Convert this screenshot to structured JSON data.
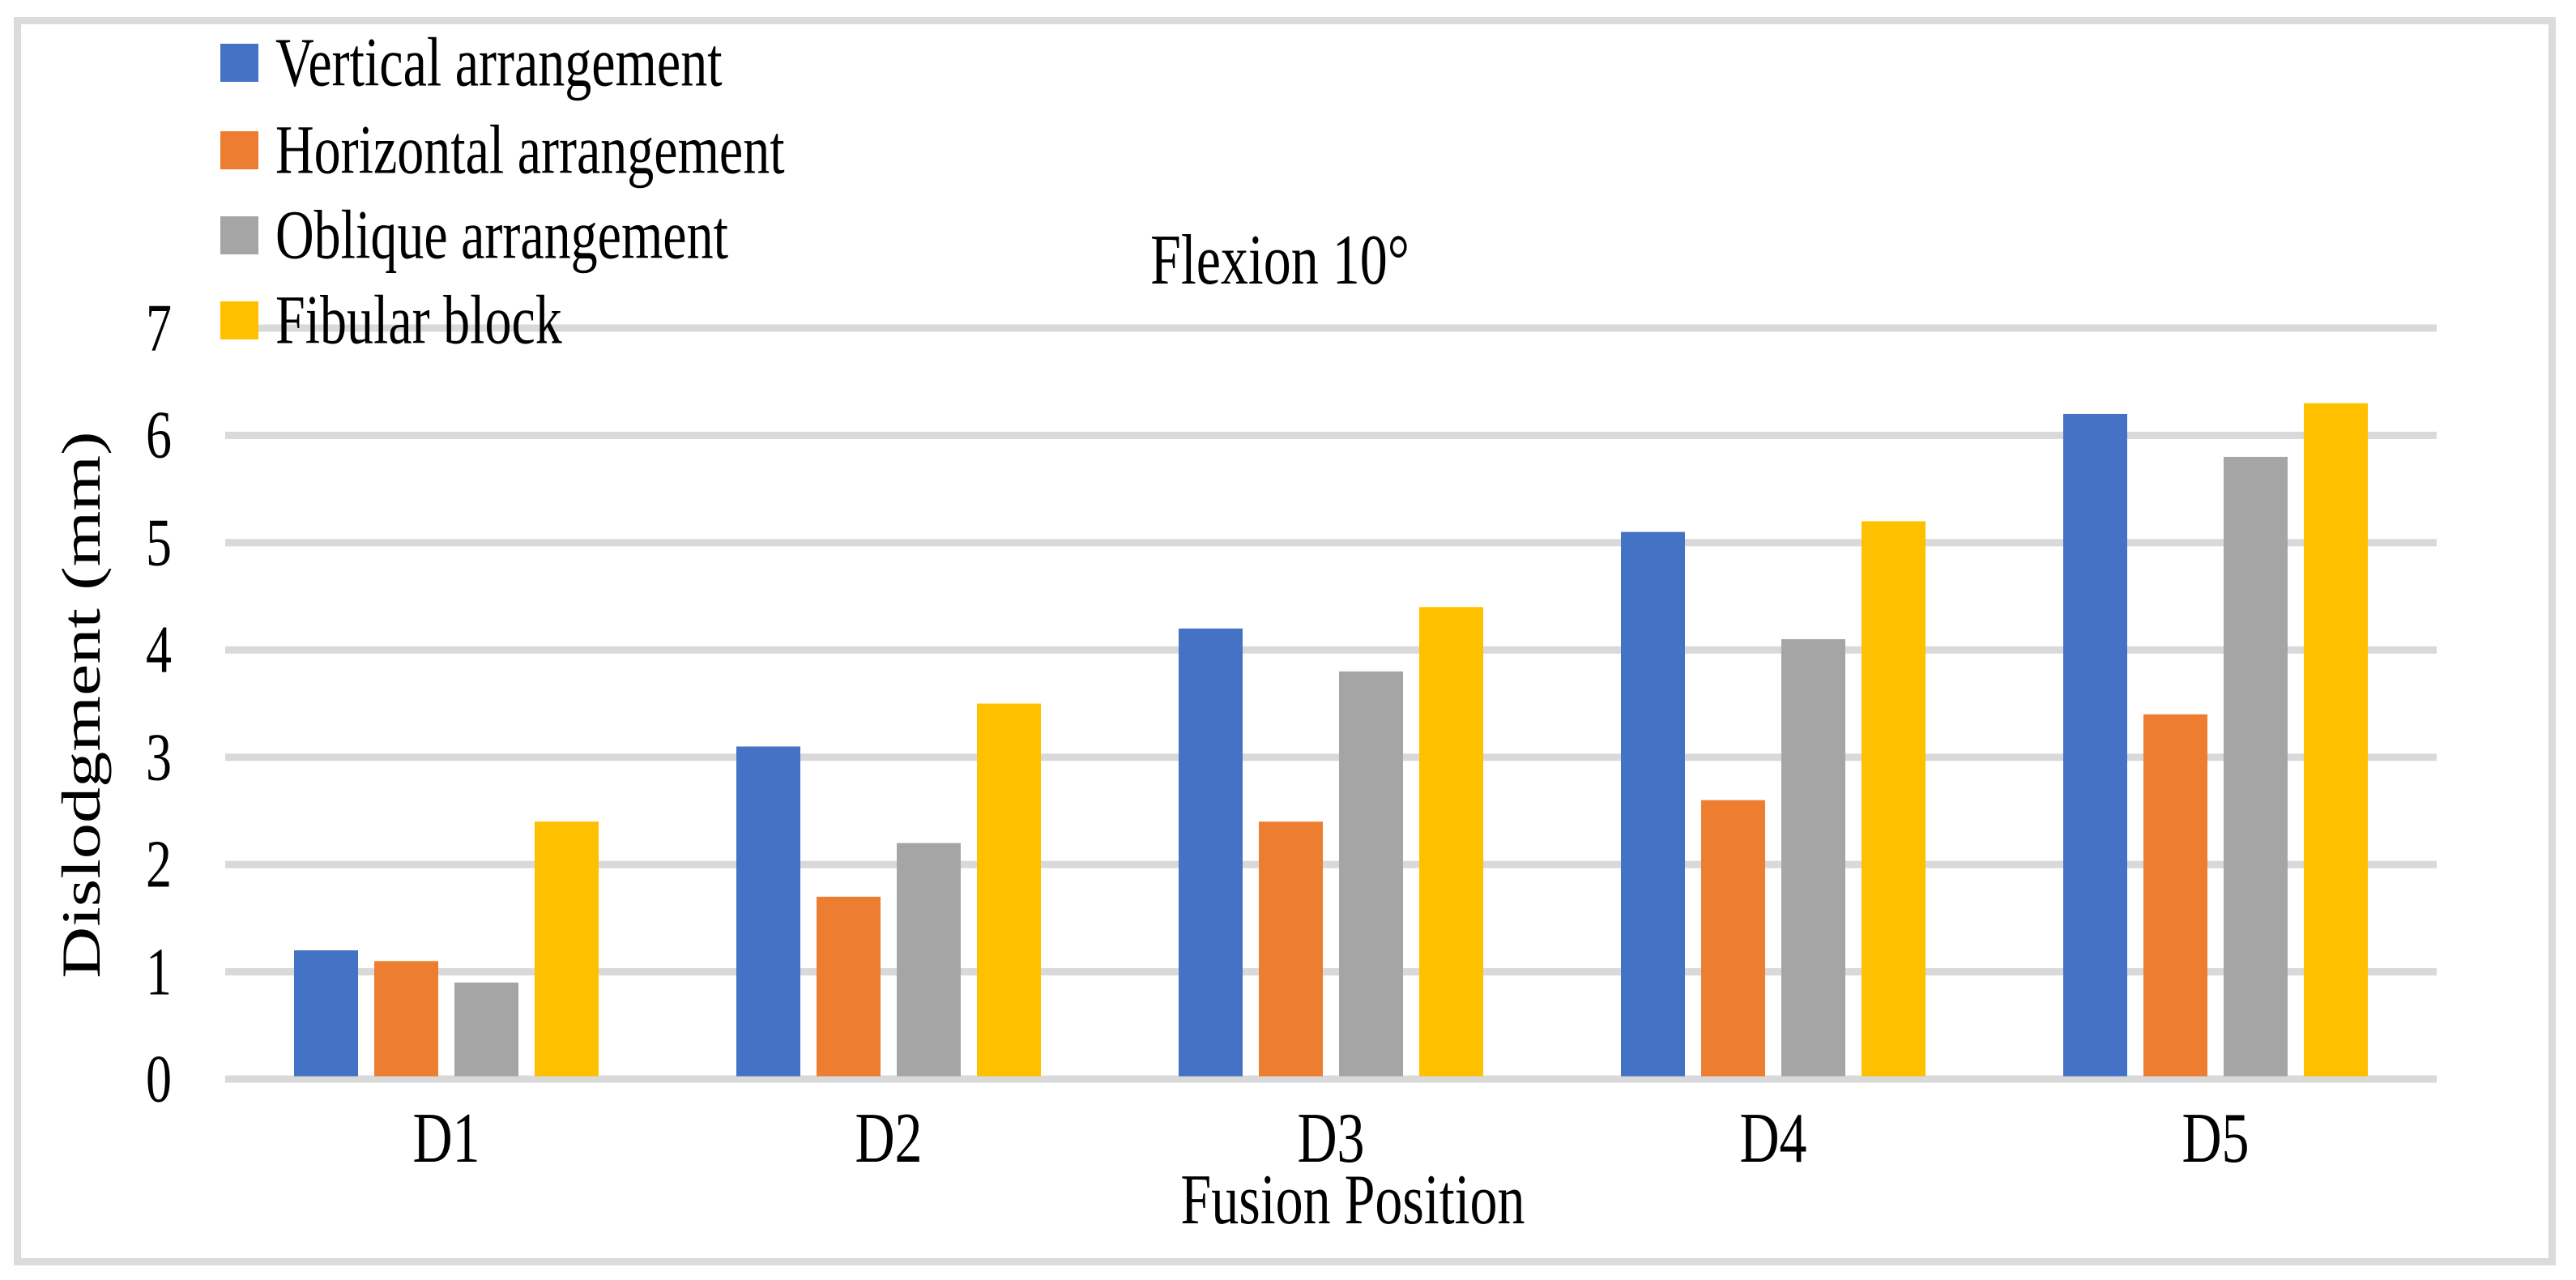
{
  "chart_data": {
    "type": "bar",
    "title": "Flexion 10°",
    "xlabel": "Fusion Position",
    "ylabel": "Dislodgment (mm)",
    "categories": [
      "D1",
      "D2",
      "D3",
      "D4",
      "D5"
    ],
    "series": [
      {
        "name": "Vertical arrangement",
        "color": "#4472C4",
        "values": [
          1.2,
          3.1,
          4.2,
          5.1,
          6.2
        ]
      },
      {
        "name": "Horizontal arrangement",
        "color": "#ED7D31",
        "values": [
          1.1,
          1.7,
          2.4,
          2.6,
          3.4
        ]
      },
      {
        "name": "Oblique arrangement",
        "color": "#A5A5A5",
        "values": [
          0.9,
          2.2,
          3.8,
          4.1,
          5.8
        ]
      },
      {
        "name": "Fibular block",
        "color": "#FFC000",
        "values": [
          2.4,
          3.5,
          4.4,
          5.2,
          6.3
        ]
      }
    ],
    "ylim": [
      0,
      7
    ],
    "yticks": [
      0,
      1,
      2,
      3,
      4,
      5,
      6,
      7
    ],
    "grid": true,
    "legend_position": "top-left",
    "gridline_color": "#D9D9D9",
    "frame_color": "#DBDBDB",
    "background": "#FFFFFF"
  }
}
